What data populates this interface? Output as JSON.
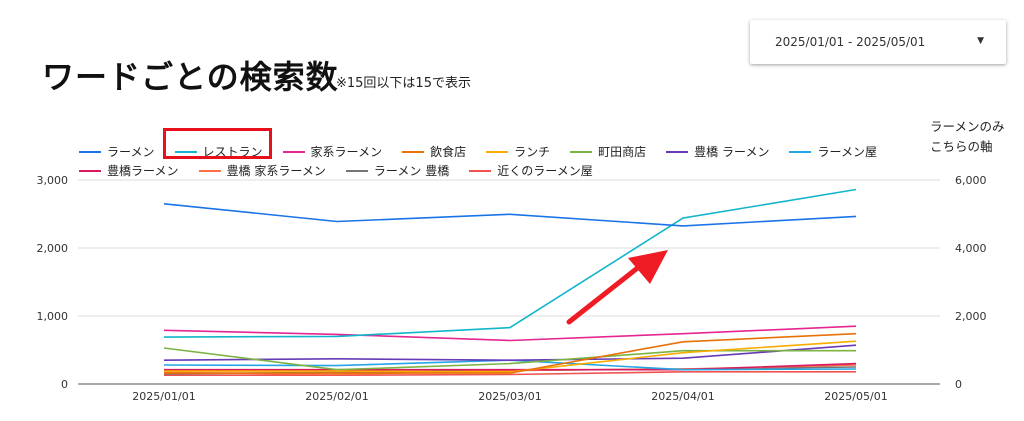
{
  "title": "ワードごとの検索数",
  "subtitle": "※15回以下は15で表示",
  "date_range": {
    "label": "2025/01/01 - 2025/05/01",
    "caret_icon": "caret-down-icon"
  },
  "right_axis_note": [
    "ラーメンのみ",
    "こちらの軸"
  ],
  "highlight_color": "#e8101a",
  "chart_data": {
    "type": "line",
    "categories": [
      "2025/01/01",
      "2025/02/01",
      "2025/03/01",
      "2025/04/01",
      "2025/05/01"
    ],
    "xlabel": "",
    "ylabel": "",
    "ylim": [
      0,
      3000
    ],
    "y_ticks": [
      "0",
      "1,000",
      "2,000",
      "3,000"
    ],
    "y2lim": [
      0,
      6000
    ],
    "y2_ticks": [
      "0",
      "2,000",
      "4,000",
      "6,000"
    ],
    "grid": true,
    "legend_position": "top",
    "series": [
      {
        "name": "ラーメン",
        "color": "#1a73e8",
        "axis": "right",
        "values": [
          5300,
          4780,
          4990,
          4650,
          4930
        ]
      },
      {
        "name": "レストラン",
        "color": "#12b5cb",
        "axis": "left",
        "values": [
          690,
          700,
          830,
          2440,
          2860
        ]
      },
      {
        "name": "家系ラーメン",
        "color": "#e52592",
        "axis": "left",
        "values": [
          790,
          730,
          640,
          740,
          850
        ]
      },
      {
        "name": "飲食店",
        "color": "#e8710a",
        "axis": "left",
        "values": [
          160,
          160,
          160,
          620,
          740
        ]
      },
      {
        "name": "ランチ",
        "color": "#f9ab00",
        "axis": "left",
        "values": [
          190,
          190,
          180,
          460,
          630
        ]
      },
      {
        "name": "町田商店",
        "color": "#7cb342",
        "axis": "left",
        "values": [
          530,
          210,
          300,
          490,
          490
        ]
      },
      {
        "name": "豊橋 ラーメン",
        "color": "#673ab7",
        "axis": "left",
        "values": [
          350,
          370,
          350,
          380,
          570
        ]
      },
      {
        "name": "ラーメン屋",
        "color": "#24a5e8",
        "axis": "left",
        "values": [
          280,
          270,
          350,
          210,
          220
        ]
      },
      {
        "name": "豊橋ラーメン",
        "color": "#d81b60",
        "axis": "left",
        "values": [
          210,
          210,
          210,
          210,
          300
        ]
      },
      {
        "name": "豊橋 家系ラーメン",
        "color": "#ff7043",
        "axis": "left",
        "values": [
          170,
          140,
          200,
          220,
          280
        ]
      },
      {
        "name": "ラーメン 豊橋",
        "color": "#757575",
        "axis": "left",
        "values": [
          150,
          170,
          200,
          220,
          250
        ]
      },
      {
        "name": "近くのラーメン屋",
        "color": "#ef5350",
        "axis": "left",
        "values": [
          130,
          130,
          140,
          180,
          180
        ]
      }
    ]
  }
}
